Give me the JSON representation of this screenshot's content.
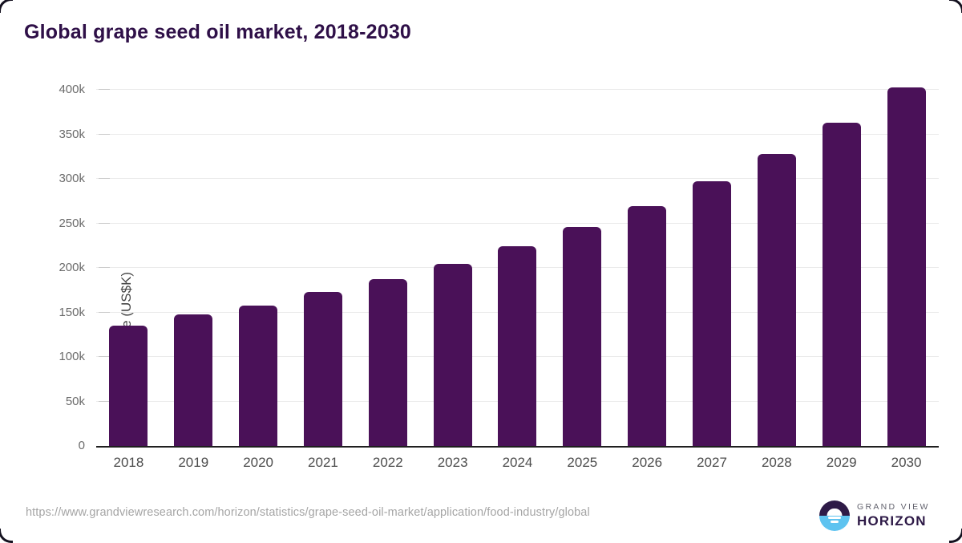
{
  "chart_data": {
    "type": "bar",
    "title": "Global grape seed oil market, 2018-2030",
    "xlabel": "",
    "ylabel": "Market Size (US$K)",
    "unit": "US$K",
    "categories": [
      "2018",
      "2019",
      "2020",
      "2021",
      "2022",
      "2023",
      "2024",
      "2025",
      "2026",
      "2027",
      "2028",
      "2029",
      "2030"
    ],
    "values": [
      135000,
      148000,
      158000,
      173000,
      188000,
      205000,
      225000,
      246000,
      270000,
      298000,
      328000,
      363000,
      403000
    ],
    "ylim": [
      0,
      400000
    ],
    "yticks": [
      {
        "value": 0,
        "label": "0"
      },
      {
        "value": 50000,
        "label": "50k"
      },
      {
        "value": 100000,
        "label": "100k"
      },
      {
        "value": 150000,
        "label": "150k"
      },
      {
        "value": 200000,
        "label": "200k"
      },
      {
        "value": 250000,
        "label": "250k"
      },
      {
        "value": 300000,
        "label": "300k"
      },
      {
        "value": 350000,
        "label": "350k"
      },
      {
        "value": 400000,
        "label": "400k"
      }
    ],
    "grid": true,
    "legend_position": "none",
    "bar_color": "#4a1158",
    "title_color": "#2f1048",
    "axis_line_color": "#1f1f1f",
    "gridline_color": "#ebebeb"
  },
  "footer": {
    "source_url": "https://www.grandviewresearch.com/horizon/statistics/grape-seed-oil-market/application/food-industry/global",
    "logo": {
      "line1": "GRAND VIEW",
      "line2": "HORIZON",
      "circle_top_color": "#2e1a47",
      "circle_bottom_color": "#5ec3f0"
    }
  }
}
